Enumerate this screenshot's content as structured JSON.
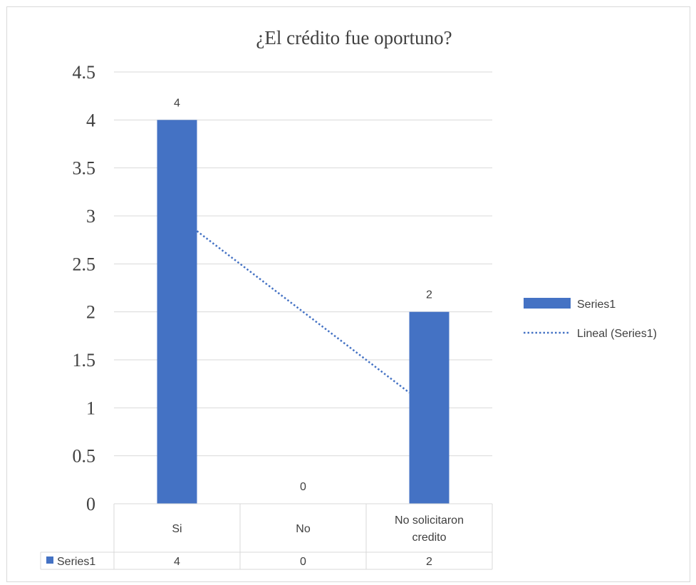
{
  "chart_data": {
    "type": "bar",
    "title": "¿El crédito fue oportuno?",
    "categories": [
      "Si",
      "No",
      "No solicitaron credito"
    ],
    "category_lines": [
      [
        "Si"
      ],
      [
        "No"
      ],
      [
        "No solicitaron",
        "credito"
      ]
    ],
    "series": [
      {
        "name": "Series1",
        "values": [
          4,
          0,
          2
        ],
        "color": "#4472c4"
      }
    ],
    "trendline": {
      "name": "Lineal (Series1)",
      "type": "linear",
      "color": "#4472c4",
      "style": "dotted"
    },
    "data_labels": [
      "4",
      "0",
      "2"
    ],
    "ylim": [
      0,
      4.5
    ],
    "yticks": [
      0,
      0.5,
      1,
      1.5,
      2,
      2.5,
      3,
      3.5,
      4,
      4.5
    ],
    "ytick_labels": [
      "0",
      "0.5",
      "1",
      "1.5",
      "2",
      "2.5",
      "3",
      "3.5",
      "4",
      "4.5"
    ],
    "grid": true,
    "legend_position": "right",
    "data_table": {
      "row_label": "Series1",
      "values": [
        "4",
        "0",
        "2"
      ]
    },
    "xlabel": "",
    "ylabel": ""
  }
}
